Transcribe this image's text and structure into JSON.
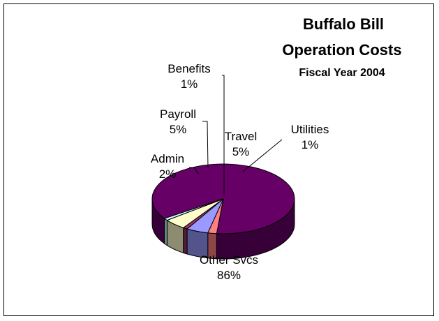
{
  "chart_data": {
    "type": "pie",
    "title_lines": [
      "Buffalo Bill",
      "Operation Costs"
    ],
    "subtitle": "Fiscal Year 2004",
    "slices": [
      {
        "name": "Other Svcs",
        "value": 86,
        "pct_label": "86%",
        "color": "#660066"
      },
      {
        "name": "Admin",
        "value": 2,
        "pct_label": "2%",
        "color": "#ff8080"
      },
      {
        "name": "Payroll",
        "value": 5,
        "pct_label": "5%",
        "color": "#9999ff"
      },
      {
        "name": "Benefits",
        "value": 1,
        "pct_label": "1%",
        "color": "#993366"
      },
      {
        "name": "Travel",
        "value": 5,
        "pct_label": "5%",
        "color": "#ffffcc"
      },
      {
        "name": "Utilities",
        "value": 1,
        "pct_label": "1%",
        "color": "#ccffff"
      }
    ]
  }
}
